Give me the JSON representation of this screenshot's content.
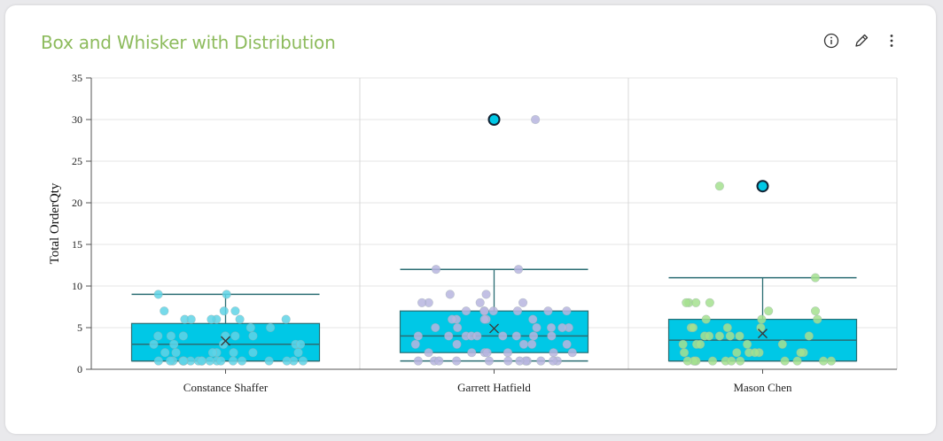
{
  "card": {
    "title": "Box and Whisker with Distribution"
  },
  "toolbar": {
    "icons": [
      "info-icon",
      "edit-pencil-icon",
      "more-vertical-icon"
    ]
  },
  "chart_data": {
    "type": "box",
    "title": "Box and Whisker with Distribution",
    "xlabel": "",
    "ylabel": "Total OrderQty",
    "ylim": [
      0,
      35
    ],
    "yticks": [
      0,
      5,
      10,
      15,
      20,
      25,
      30,
      35
    ],
    "grid": true,
    "categories": [
      "Constance Shaffer",
      "Garrett Hatfield",
      "Mason Chen"
    ],
    "box_color": "#00c8e6",
    "boxes": [
      {
        "category": "Constance Shaffer",
        "min": 1,
        "q1": 1,
        "median": 3,
        "mean": 3.4,
        "q3": 5.5,
        "max": 9,
        "outliers": [],
        "point_color": "#5fd3e6",
        "points": [
          7,
          7,
          7,
          6,
          6,
          9,
          9,
          6,
          6,
          6,
          6,
          5,
          5,
          4,
          4,
          4,
          4,
          4,
          4,
          3,
          3,
          3,
          3,
          3,
          2,
          2,
          2,
          2,
          2,
          2,
          2,
          1,
          1,
          1,
          1,
          1,
          1,
          1,
          1,
          1,
          1,
          1,
          1,
          1,
          1,
          1,
          1,
          1,
          1,
          1
        ]
      },
      {
        "category": "Garrett Hatfield",
        "min": 1,
        "q1": 2,
        "median": 4,
        "mean": 4.9,
        "q3": 7,
        "max": 12,
        "outliers": [
          30
        ],
        "point_color": "#b7b5df",
        "points": [
          30,
          12,
          12,
          9,
          9,
          8,
          8,
          8,
          8,
          7,
          7,
          7,
          7,
          7,
          7,
          7,
          6,
          6,
          6,
          6,
          6,
          5,
          5,
          5,
          5,
          5,
          5,
          4,
          4,
          4,
          4,
          4,
          4,
          4,
          4,
          4,
          3,
          3,
          3,
          3,
          3,
          2,
          2,
          2,
          2,
          2,
          2,
          2,
          1,
          1,
          1,
          1,
          1,
          1,
          1,
          1,
          1,
          1,
          1,
          1
        ]
      },
      {
        "category": "Mason Chen",
        "min": 1,
        "q1": 1,
        "median": 3.5,
        "mean": 4.3,
        "q3": 6,
        "max": 11,
        "outliers": [
          22
        ],
        "point_color": "#a5e08f",
        "points": [
          22,
          11,
          8,
          8,
          8,
          8,
          7,
          7,
          6,
          6,
          6,
          5,
          5,
          5,
          5,
          4,
          4,
          4,
          4,
          4,
          4,
          3,
          3,
          3,
          3,
          3,
          2,
          2,
          2,
          2,
          2,
          2,
          2,
          1,
          1,
          1,
          1,
          1,
          1,
          1,
          1,
          1,
          1,
          1,
          1
        ]
      }
    ]
  }
}
